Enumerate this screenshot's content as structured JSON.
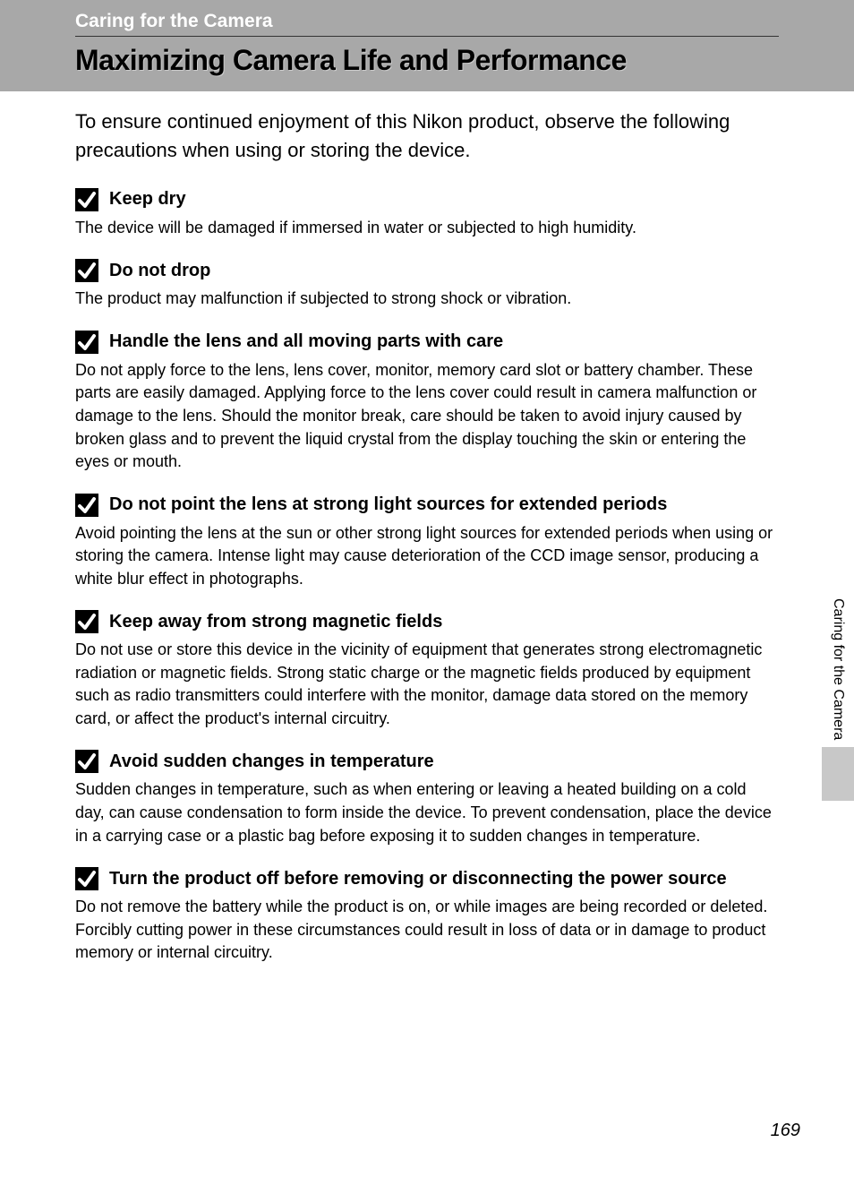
{
  "header": {
    "section_label": "Caring for the Camera",
    "page_title": "Maximizing Camera Life and Performance"
  },
  "intro": "To ensure continued enjoyment of this Nikon product, observe the following precautions when using or storing the device.",
  "sections": [
    {
      "title": "Keep dry",
      "body": "The device will be damaged if immersed in water or subjected to high humidity."
    },
    {
      "title": "Do not drop",
      "body": "The product may malfunction if subjected to strong shock or vibration."
    },
    {
      "title": "Handle the lens and all moving parts with care",
      "body": "Do not apply force to the lens, lens cover, monitor, memory card slot or battery chamber. These parts are easily damaged. Applying force to the lens cover could result in camera malfunction or damage to the lens. Should the monitor break, care should be taken to avoid injury caused by broken glass and to prevent the liquid crystal from the display touching the skin or entering the eyes or mouth."
    },
    {
      "title": "Do not point the lens at strong light sources for extended periods",
      "body": "Avoid pointing the lens at the sun or other strong light sources for extended periods when using or storing the camera. Intense light may cause deterioration of the CCD image sensor, producing a white blur effect in photographs."
    },
    {
      "title": "Keep away from strong magnetic fields",
      "body": "Do not use or store this device in the vicinity of equipment that generates strong electromagnetic radiation or magnetic fields. Strong static charge or the magnetic fields produced by equipment such as radio transmitters could interfere with the monitor, damage data stored on the memory card, or affect the product's internal circuitry."
    },
    {
      "title": "Avoid sudden changes in temperature",
      "body": "Sudden changes in temperature, such as when entering or leaving a heated building on a cold day, can cause condensation to form inside the device. To prevent condensation, place the device in a carrying case or a plastic bag before exposing it to sudden changes in temperature."
    },
    {
      "title": "Turn the product off before removing or disconnecting the power source",
      "body": "Do not remove the battery while the product is on, or while images are being recorded or deleted. Forcibly cutting power in these circumstances could result in loss of data or in damage to product memory or internal circuitry."
    }
  ],
  "side_tab": "Caring for the Camera",
  "page_number": "169",
  "colors": {
    "header_band": "#a8a8a8",
    "header_label": "#ffffff",
    "text": "#000000",
    "side_block": "#c8c8c8"
  }
}
